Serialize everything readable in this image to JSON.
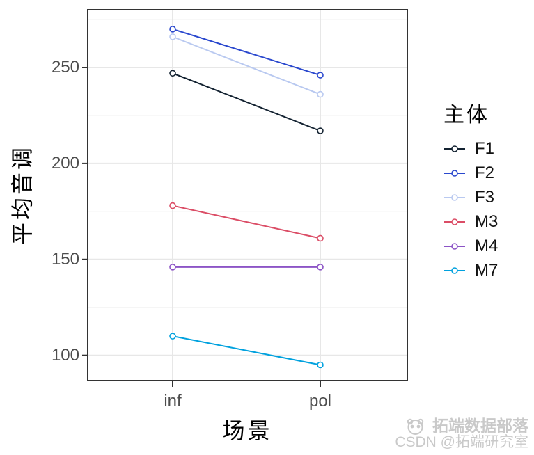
{
  "chart_data": {
    "type": "line",
    "title": "",
    "xlabel": "场景",
    "ylabel": "平均音调",
    "categories": [
      "inf",
      "pol"
    ],
    "series": [
      {
        "name": "F1",
        "color": "#132231",
        "values": [
          247,
          217
        ]
      },
      {
        "name": "F2",
        "color": "#2a48ce",
        "values": [
          270,
          246
        ]
      },
      {
        "name": "F3",
        "color": "#b9c9f0",
        "values": [
          266,
          236
        ]
      },
      {
        "name": "M3",
        "color": "#db4d66",
        "values": [
          178,
          161
        ]
      },
      {
        "name": "M4",
        "color": "#8c54c6",
        "values": [
          146,
          146
        ]
      },
      {
        "name": "M7",
        "color": "#00a1de",
        "values": [
          110,
          95
        ]
      }
    ],
    "y_ticks": [
      100,
      150,
      200,
      250
    ],
    "y_minor_ticks": [
      125,
      175,
      225,
      275
    ],
    "ylim": [
      86.5,
      280.5
    ],
    "grid": true,
    "marker": "open-circle",
    "legend_title": "主体",
    "legend_position": "right"
  },
  "colors": {
    "background": "#ffffff",
    "panel_border": "#333333",
    "grid_major": "#e7e7e7",
    "grid_minor": "#f2f2f2",
    "tick_mark": "#333333",
    "tick_text": "#4d4d4d",
    "axis_title_text": "#000000",
    "legend_text": "#111111",
    "watermark_text": "#c9c9c9"
  },
  "watermark": {
    "brand": "拓端数据部落",
    "credit": "CSDN @拓端研究室",
    "logo": "panda-logo-icon"
  }
}
